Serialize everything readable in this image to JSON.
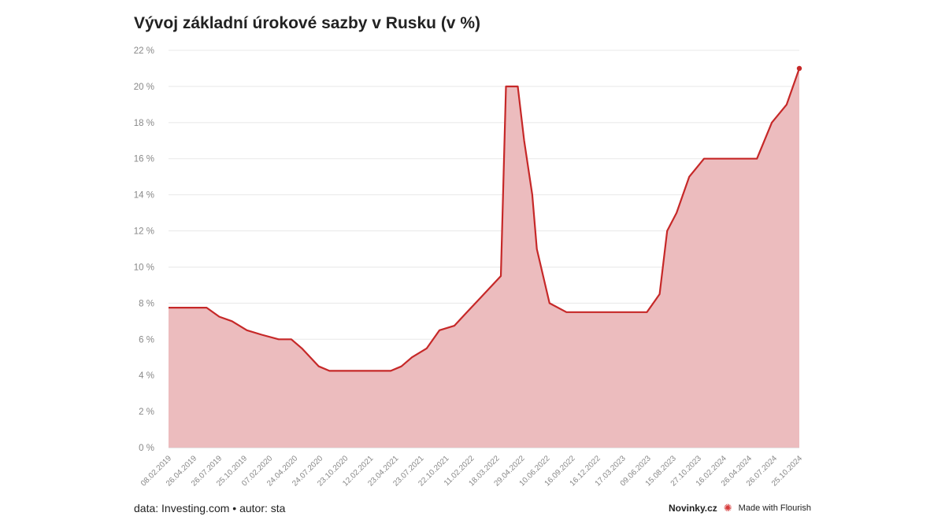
{
  "title": "Vývoj základní úrokové sazby v Rusku (v %)",
  "footer": {
    "source": "data: Investing.com • autor: sta",
    "brand": "Novinky.cz",
    "made_with": "Made with Flourish",
    "made_with_icon": "flourish-asterisk-icon"
  },
  "colors": {
    "line": "#c62828",
    "fill": "#ecbcbe",
    "grid": "#e8e8e8",
    "tick": "#888888"
  },
  "chart_data": {
    "type": "area",
    "x_start_date": "2019-02-08",
    "x_end_date": "2024-10-25",
    "ylim": [
      0,
      22
    ],
    "y_ticks": [
      0,
      2,
      4,
      6,
      8,
      10,
      12,
      14,
      16,
      18,
      20,
      22
    ],
    "y_tick_suffix": " %",
    "x_tick_labels": [
      "08.02.2019",
      "26.04.2019",
      "26.07.2019",
      "25.10.2019",
      "07.02.2020",
      "24.04.2020",
      "24.07.2020",
      "23.10.2020",
      "12.02.2021",
      "23.04.2021",
      "23.07.2021",
      "22.10.2021",
      "11.02.2022",
      "18.03.2022",
      "29.04.2022",
      "10.06.2022",
      "16.09.2022",
      "16.12.2022",
      "17.03.2023",
      "09.06.2023",
      "15.08.2023",
      "27.10.2023",
      "16.02.2024",
      "26.04.2024",
      "26.07.2024",
      "25.10.2024"
    ],
    "series": [
      {
        "name": "",
        "points": [
          [
            "2019-02-08",
            7.75
          ],
          [
            "2019-06-14",
            7.75
          ],
          [
            "2019-07-26",
            7.25
          ],
          [
            "2019-09-06",
            7.0
          ],
          [
            "2019-10-25",
            6.5
          ],
          [
            "2019-12-13",
            6.25
          ],
          [
            "2020-02-07",
            6.0
          ],
          [
            "2020-03-20",
            6.0
          ],
          [
            "2020-04-24",
            5.5
          ],
          [
            "2020-06-19",
            4.5
          ],
          [
            "2020-07-24",
            4.25
          ],
          [
            "2020-10-23",
            4.25
          ],
          [
            "2021-02-12",
            4.25
          ],
          [
            "2021-03-19",
            4.5
          ],
          [
            "2021-04-23",
            5.0
          ],
          [
            "2021-06-11",
            5.5
          ],
          [
            "2021-07-23",
            6.5
          ],
          [
            "2021-09-10",
            6.75
          ],
          [
            "2021-10-22",
            7.5
          ],
          [
            "2021-12-17",
            8.5
          ],
          [
            "2022-02-11",
            9.5
          ],
          [
            "2022-02-28",
            20.0
          ],
          [
            "2022-04-08",
            20.0
          ],
          [
            "2022-04-29",
            17.0
          ],
          [
            "2022-05-26",
            14.0
          ],
          [
            "2022-06-10",
            11.0
          ],
          [
            "2022-07-22",
            8.0
          ],
          [
            "2022-09-16",
            7.5
          ],
          [
            "2022-10-28",
            7.5
          ],
          [
            "2022-12-16",
            7.5
          ],
          [
            "2023-02-10",
            7.5
          ],
          [
            "2023-03-17",
            7.5
          ],
          [
            "2023-04-28",
            7.5
          ],
          [
            "2023-06-09",
            7.5
          ],
          [
            "2023-07-21",
            8.5
          ],
          [
            "2023-08-15",
            12.0
          ],
          [
            "2023-09-15",
            13.0
          ],
          [
            "2023-10-27",
            15.0
          ],
          [
            "2023-12-15",
            16.0
          ],
          [
            "2024-02-16",
            16.0
          ],
          [
            "2024-03-22",
            16.0
          ],
          [
            "2024-04-26",
            16.0
          ],
          [
            "2024-06-07",
            16.0
          ],
          [
            "2024-07-26",
            18.0
          ],
          [
            "2024-09-13",
            19.0
          ],
          [
            "2024-10-25",
            21.0
          ]
        ]
      }
    ]
  }
}
